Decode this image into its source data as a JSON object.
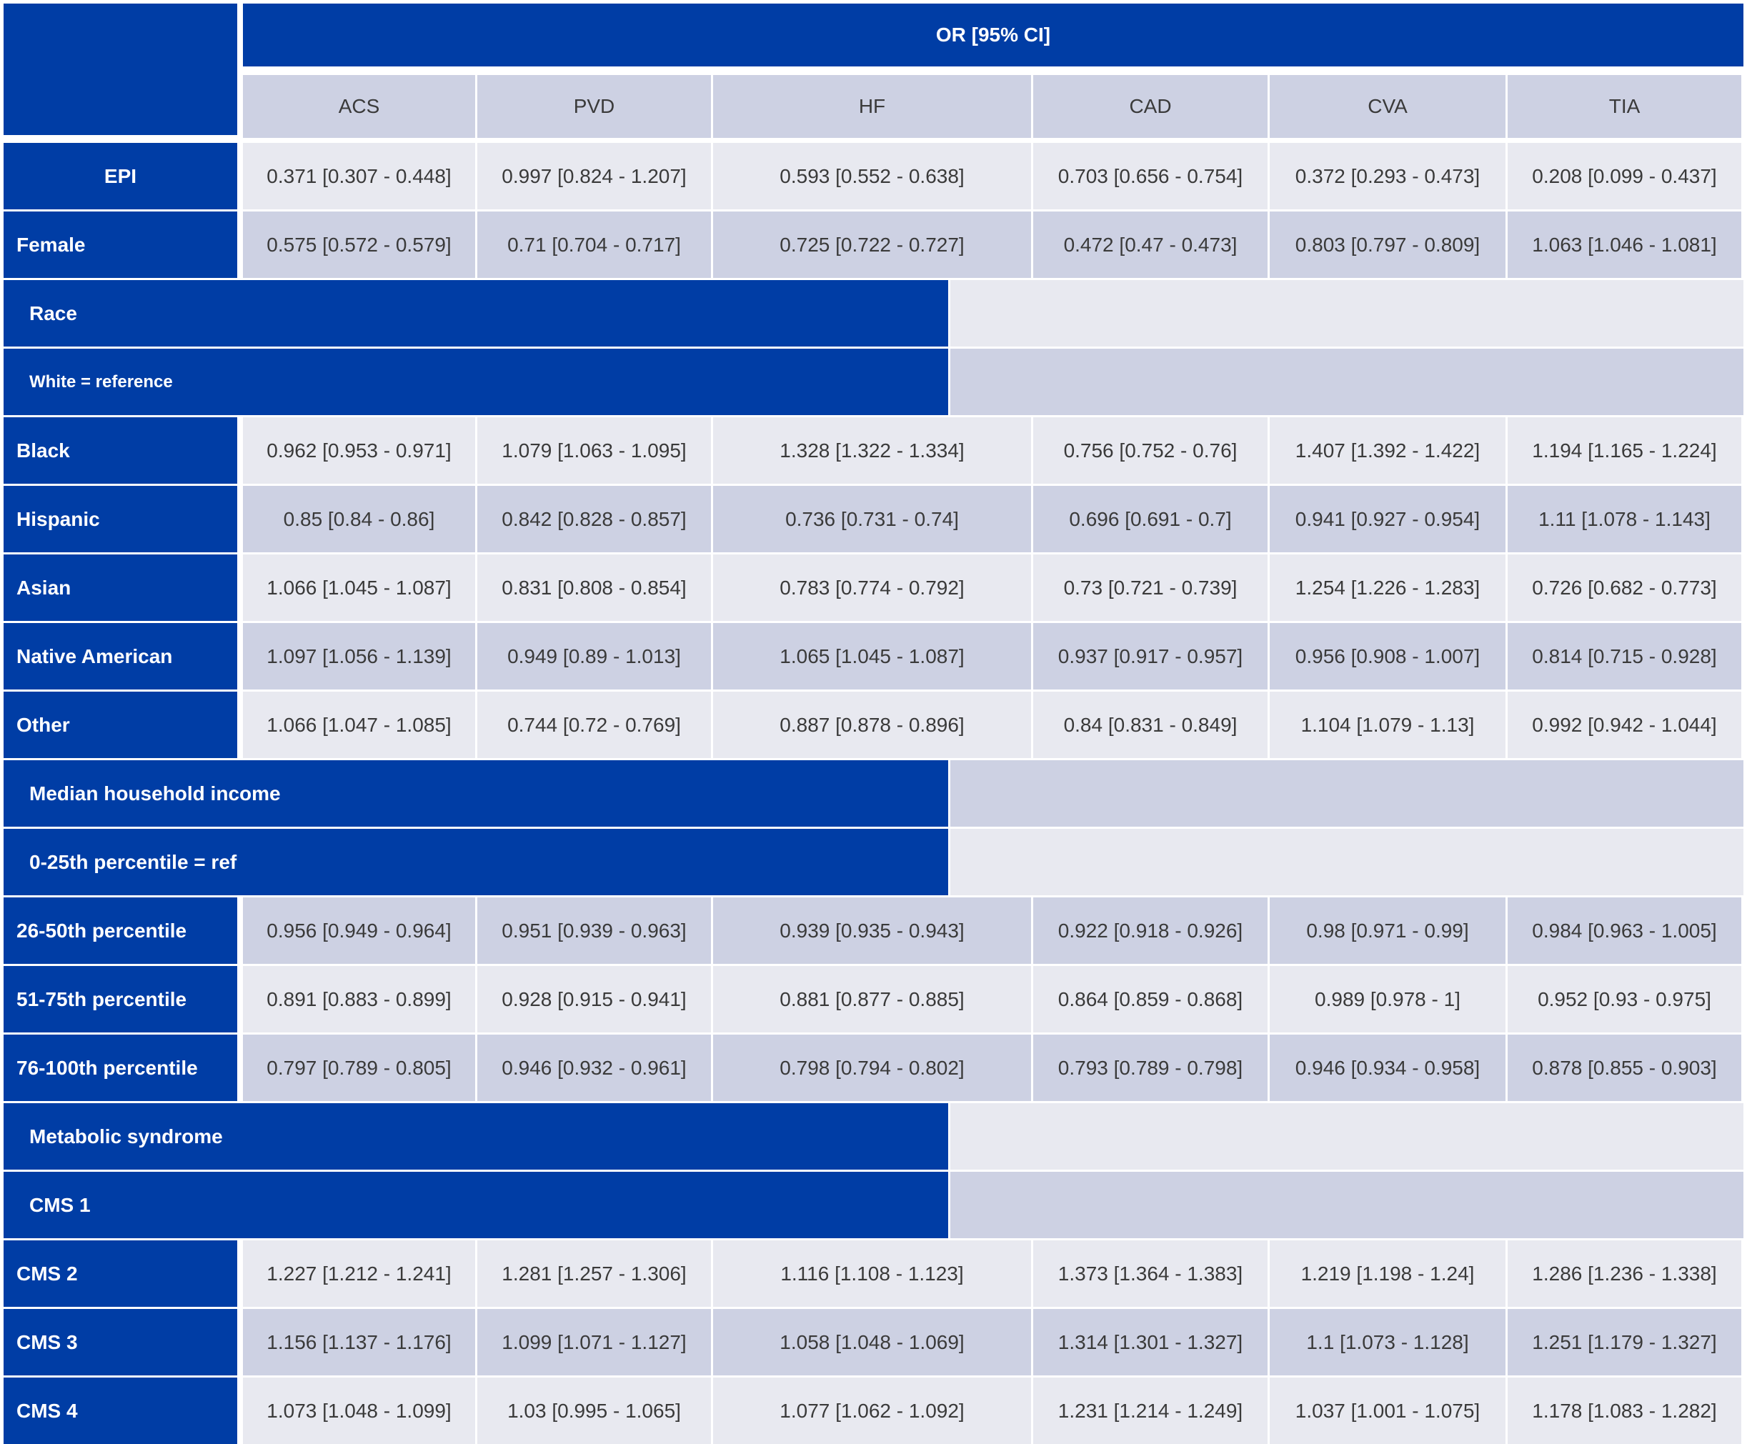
{
  "table": {
    "header_title": "OR [95% CI]",
    "columns": [
      "ACS",
      "PVD",
      "HF",
      "CAD",
      "CVA",
      "TIA"
    ],
    "rows": [
      {
        "type": "data",
        "label": "EPI",
        "centered": true,
        "values": [
          "0.371 [0.307 - 0.448]",
          "0.997 [0.824 - 1.207]",
          "0.593 [0.552 - 0.638]",
          "0.703 [0.656 - 0.754]",
          "0.372 [0.293 - 0.473]",
          "0.208 [0.099 - 0.437]"
        ]
      },
      {
        "type": "data",
        "label": "Female",
        "values": [
          "0.575 [0.572 - 0.579]",
          "0.71 [0.704 - 0.717]",
          "0.725 [0.722 - 0.727]",
          "0.472 [0.47 - 0.473]",
          "0.803 [0.797 - 0.809]",
          "1.063 [1.046 - 1.081]"
        ]
      },
      {
        "type": "section",
        "label": "Race"
      },
      {
        "type": "section",
        "label": "White = reference",
        "small": true
      },
      {
        "type": "data",
        "label": "Black",
        "values": [
          "0.962 [0.953 - 0.971]",
          "1.079 [1.063 - 1.095]",
          "1.328 [1.322 - 1.334]",
          "0.756 [0.752 - 0.76]",
          "1.407 [1.392 - 1.422]",
          "1.194 [1.165 - 1.224]"
        ]
      },
      {
        "type": "data",
        "label": "Hispanic",
        "values": [
          "0.85 [0.84 - 0.86]",
          "0.842 [0.828 - 0.857]",
          "0.736 [0.731 - 0.74]",
          "0.696 [0.691 - 0.7]",
          "0.941 [0.927 - 0.954]",
          "1.11 [1.078 - 1.143]"
        ]
      },
      {
        "type": "data",
        "label": "Asian",
        "values": [
          "1.066 [1.045 - 1.087]",
          "0.831 [0.808 - 0.854]",
          "0.783 [0.774 - 0.792]",
          "0.73 [0.721 - 0.739]",
          "1.254 [1.226 - 1.283]",
          "0.726 [0.682 - 0.773]"
        ]
      },
      {
        "type": "data",
        "label": "Native American",
        "values": [
          "1.097 [1.056 - 1.139]",
          "0.949 [0.89 - 1.013]",
          "1.065 [1.045 - 1.087]",
          "0.937 [0.917 - 0.957]",
          "0.956 [0.908 - 1.007]",
          "0.814 [0.715 - 0.928]"
        ]
      },
      {
        "type": "data",
        "label": "Other",
        "values": [
          "1.066 [1.047 - 1.085]",
          "0.744 [0.72 - 0.769]",
          "0.887 [0.878 - 0.896]",
          "0.84 [0.831 - 0.849]",
          "1.104 [1.079 - 1.13]",
          "0.992 [0.942 - 1.044]"
        ]
      },
      {
        "type": "section",
        "label": "Median household income"
      },
      {
        "type": "section",
        "label": "0-25th percentile = ref"
      },
      {
        "type": "data",
        "label": "26-50th percentile",
        "values": [
          "0.956 [0.949 - 0.964]",
          "0.951 [0.939 - 0.963]",
          "0.939 [0.935 - 0.943]",
          "0.922 [0.918 - 0.926]",
          "0.98 [0.971 - 0.99]",
          "0.984 [0.963 - 1.005]"
        ]
      },
      {
        "type": "data",
        "label": "51-75th percentile",
        "values": [
          "0.891 [0.883 - 0.899]",
          "0.928 [0.915 - 0.941]",
          "0.881 [0.877 - 0.885]",
          "0.864 [0.859 - 0.868]",
          "0.989 [0.978 - 1]",
          "0.952 [0.93 - 0.975]"
        ]
      },
      {
        "type": "data",
        "label": "76-100th percentile",
        "values": [
          "0.797 [0.789 - 0.805]",
          "0.946 [0.932 - 0.961]",
          "0.798 [0.794 - 0.802]",
          "0.793 [0.789 - 0.798]",
          "0.946 [0.934 - 0.958]",
          "0.878 [0.855 - 0.903]"
        ]
      },
      {
        "type": "section",
        "label": "Metabolic syndrome"
      },
      {
        "type": "section",
        "label": "CMS 1"
      },
      {
        "type": "data",
        "label": "CMS 2",
        "values": [
          "1.227 [1.212 - 1.241]",
          "1.281 [1.257 - 1.306]",
          "1.116 [1.108 - 1.123]",
          "1.373 [1.364 - 1.383]",
          "1.219 [1.198 - 1.24]",
          "1.286 [1.236 - 1.338]"
        ]
      },
      {
        "type": "data",
        "label": "CMS 3",
        "values": [
          "1.156 [1.137 - 1.176]",
          "1.099 [1.071 - 1.127]",
          "1.058 [1.048 - 1.069]",
          "1.314 [1.301 - 1.327]",
          "1.1 [1.073 - 1.128]",
          "1.251 [1.179 - 1.327]"
        ]
      },
      {
        "type": "data",
        "label": "CMS 4",
        "values": [
          "1.073 [1.048 - 1.099]",
          "1.03 [0.995 - 1.065]",
          "1.077 [1.062 - 1.092]",
          "1.231 [1.214 - 1.249]",
          "1.037 [1.001 - 1.075]",
          "1.178 [1.083 - 1.282]"
        ]
      }
    ]
  }
}
